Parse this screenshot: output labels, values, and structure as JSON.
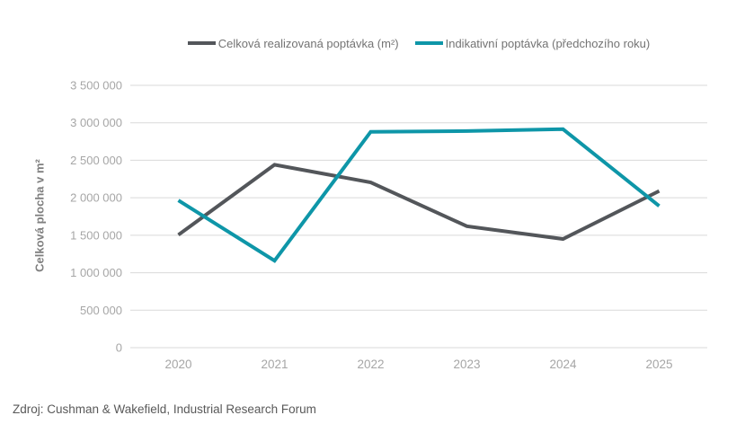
{
  "chart_data": {
    "type": "line",
    "title": "",
    "categories": [
      "2020",
      "2021",
      "2022",
      "2023",
      "2024",
      "2025"
    ],
    "series": [
      {
        "name": "Celková realizovaná poptávka (m²)",
        "color": "#53565A",
        "values": [
          1505000,
          2440000,
          2205000,
          1620000,
          1450000,
          2090000
        ]
      },
      {
        "name": "Indikativní poptávka (předchozího roku)",
        "color": "#0E96A8",
        "values": [
          1965000,
          1160000,
          2880000,
          2890000,
          2915000,
          1890000
        ]
      }
    ],
    "xlabel": "",
    "ylabel": "Celková plocha v m²",
    "ylim": [
      0,
      3500000
    ],
    "ytick_step": 500000,
    "ytick_labels": [
      "3 500 000",
      "3 000 000",
      "2 500 000",
      "2 000 000",
      "1 500 000",
      "1 000 000",
      "500 000",
      "0"
    ],
    "grid": true,
    "legend_position": "top"
  },
  "footer": {
    "source": "Zdroj: Cushman & Wakefield, Industrial Research Forum"
  },
  "colors": {
    "background": "#FFFFFF",
    "gridline": "#D9D9D9",
    "tick_label": "#A6A6A6",
    "axis_title": "#7F7F7F",
    "legend_text": "#737373",
    "source_text": "#595959"
  }
}
